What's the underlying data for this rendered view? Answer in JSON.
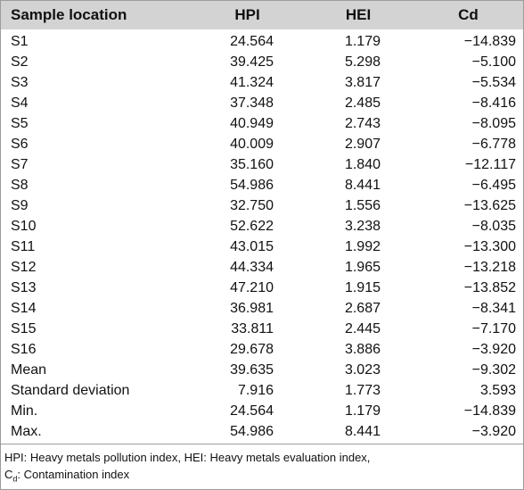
{
  "table": {
    "headers": {
      "location": "Sample location",
      "hpi": "HPI",
      "hei": "HEI",
      "cd": "Cd"
    },
    "rows": [
      {
        "location": "S1",
        "hpi": "24.564",
        "hei": "1.179",
        "cd": "−14.839"
      },
      {
        "location": "S2",
        "hpi": "39.425",
        "hei": "5.298",
        "cd": "−5.100"
      },
      {
        "location": "S3",
        "hpi": "41.324",
        "hei": "3.817",
        "cd": "−5.534"
      },
      {
        "location": "S4",
        "hpi": "37.348",
        "hei": "2.485",
        "cd": "−8.416"
      },
      {
        "location": "S5",
        "hpi": "40.949",
        "hei": "2.743",
        "cd": "−8.095"
      },
      {
        "location": "S6",
        "hpi": "40.009",
        "hei": "2.907",
        "cd": "−6.778"
      },
      {
        "location": "S7",
        "hpi": "35.160",
        "hei": "1.840",
        "cd": "−12.117"
      },
      {
        "location": "S8",
        "hpi": "54.986",
        "hei": "8.441",
        "cd": "−6.495"
      },
      {
        "location": "S9",
        "hpi": "32.750",
        "hei": "1.556",
        "cd": "−13.625"
      },
      {
        "location": "S10",
        "hpi": "52.622",
        "hei": "3.238",
        "cd": "−8.035"
      },
      {
        "location": "S11",
        "hpi": "43.015",
        "hei": "1.992",
        "cd": "−13.300"
      },
      {
        "location": "S12",
        "hpi": "44.334",
        "hei": "1.965",
        "cd": "−13.218"
      },
      {
        "location": "S13",
        "hpi": "47.210",
        "hei": "1.915",
        "cd": "−13.852"
      },
      {
        "location": "S14",
        "hpi": "36.981",
        "hei": "2.687",
        "cd": "−8.341"
      },
      {
        "location": "S15",
        "hpi": "33.811",
        "hei": "2.445",
        "cd": "−7.170"
      },
      {
        "location": "S16",
        "hpi": "29.678",
        "hei": "3.886",
        "cd": "−3.920"
      },
      {
        "location": "Mean",
        "hpi": "39.635",
        "hei": "3.023",
        "cd": "−9.302"
      },
      {
        "location": "Standard deviation",
        "hpi": "7.916",
        "hei": "1.773",
        "cd": "3.593"
      },
      {
        "location": "Min.",
        "hpi": "24.564",
        "hei": "1.179",
        "cd": "−14.839"
      },
      {
        "location": "Max.",
        "hpi": "54.986",
        "hei": "8.441",
        "cd": "−3.920"
      }
    ]
  },
  "footnote": {
    "line1": "HPI: Heavy metals pollution index, HEI: Heavy metals evaluation index,",
    "line2_prefix": "C",
    "line2_sub": "d",
    "line2_rest": ": Contamination index"
  },
  "colors": {
    "header_bg": "#d3d3d3",
    "border": "#9c9c9c",
    "text": "#111111"
  }
}
